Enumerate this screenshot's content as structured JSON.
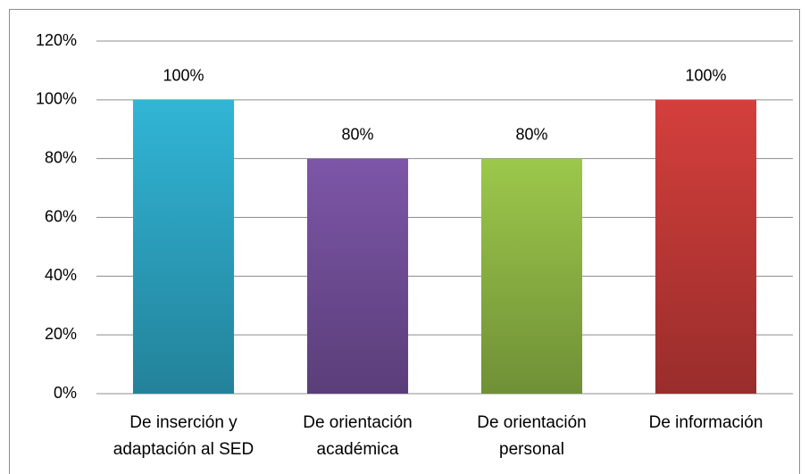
{
  "chart_data": {
    "type": "bar",
    "categories": [
      "De inserción y adaptación al SED",
      "De orientación académica",
      "De orientación personal",
      "De información"
    ],
    "values": [
      100,
      80,
      80,
      100
    ],
    "value_labels": [
      "100%",
      "80%",
      "80%",
      "100%"
    ],
    "colors": [
      "#31b5d6",
      "#7d56a8",
      "#9cc84b",
      "#d43f3c"
    ],
    "ylim": [
      0,
      120
    ],
    "yticks": [
      {
        "value": 0,
        "label": "0%"
      },
      {
        "value": 20,
        "label": "20%"
      },
      {
        "value": 40,
        "label": "40%"
      },
      {
        "value": 60,
        "label": "60%"
      },
      {
        "value": 80,
        "label": "80%"
      },
      {
        "value": 100,
        "label": "100%"
      },
      {
        "value": 120,
        "label": "120%"
      }
    ],
    "grid": true
  }
}
